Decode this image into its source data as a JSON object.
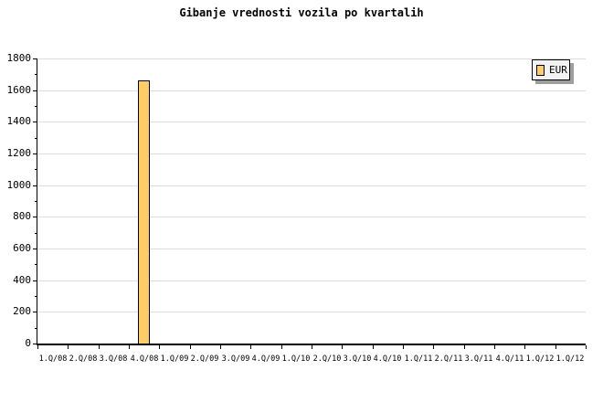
{
  "page": {
    "background": "#ffffff"
  },
  "chart_data": {
    "type": "bar",
    "title": "Gibanje vrednosti vozila po kvartalih",
    "xlabel": "",
    "ylabel": "",
    "categories": [
      "1.Q/08",
      "2.Q/08",
      "3.Q/08",
      "4.Q/08",
      "1.Q/09",
      "2.Q/09",
      "3.Q/09",
      "4.Q/09",
      "1.Q/10",
      "2.Q/10",
      "3.Q/10",
      "4.Q/10",
      "1.Q/11",
      "2.Q/11",
      "3.Q/11",
      "4.Q/11",
      "1.Q/12",
      "1.Q/12"
    ],
    "series": [
      {
        "name": "EUR",
        "color": "#FFCC66",
        "values": [
          0,
          0,
          0,
          1660,
          0,
          0,
          0,
          0,
          0,
          0,
          0,
          0,
          0,
          0,
          0,
          0,
          0,
          0
        ]
      }
    ],
    "ylim": [
      0,
      1800
    ],
    "ytick_step": 200,
    "ytick_minor_step": 100,
    "grid": "horizontal-major",
    "legend_position": "top-right",
    "legend": {
      "label": "EUR",
      "swatch_color": "#FFCC66"
    },
    "colors": {
      "bar_fill": "#FFCC66",
      "bar_border": "#000000",
      "grid": "#DCDCDC",
      "axis": "#000000",
      "legend_bg": "#F2F2F2",
      "legend_shadow": "#9E9E9E",
      "text": "#000000"
    }
  }
}
